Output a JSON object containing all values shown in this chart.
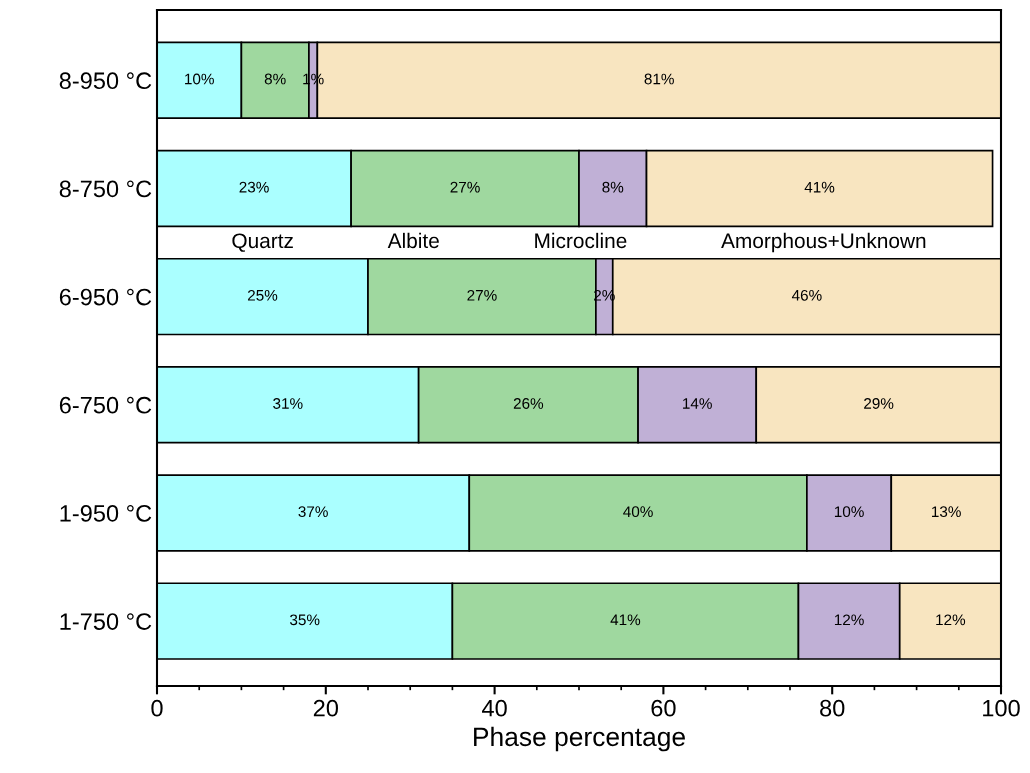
{
  "chart_data": {
    "type": "bar",
    "orientation": "horizontal",
    "stacked": true,
    "xlabel": "Phase percentage",
    "categories": [
      "8-950 °C",
      "8-750 °C",
      "6-950 °C",
      "6-750 °C",
      "1-950 °C",
      "1-750 °C"
    ],
    "series": [
      {
        "name": "Quartz",
        "color": "#aaffff",
        "values": [
          10,
          23,
          25,
          31,
          37,
          35
        ],
        "value_labels": [
          "10%",
          "23%",
          "25%",
          "31%",
          "37%",
          "35%"
        ]
      },
      {
        "name": "Albite",
        "color": "#9fd89f",
        "values": [
          8,
          27,
          27,
          26,
          40,
          41
        ],
        "value_labels": [
          "8%",
          "27%",
          "27%",
          "26%",
          "40%",
          "41%"
        ]
      },
      {
        "name": "Microcline",
        "color": "#c0b0d6",
        "values": [
          1,
          8,
          2,
          14,
          10,
          12
        ],
        "value_labels": [
          "1%",
          "8%",
          "2%",
          "14%",
          "10%",
          "12%"
        ]
      },
      {
        "name": "Amorphous+Unknown",
        "color": "#f8e5c0",
        "values": [
          81,
          41,
          46,
          29,
          13,
          12
        ],
        "value_labels": [
          "81%",
          "41%",
          "46%",
          "29%",
          "13%",
          "12%"
        ]
      }
    ],
    "xlim": [
      0,
      100
    ],
    "xticks": [
      0,
      20,
      40,
      60,
      80,
      100
    ],
    "legend": "center",
    "grid": false
  }
}
